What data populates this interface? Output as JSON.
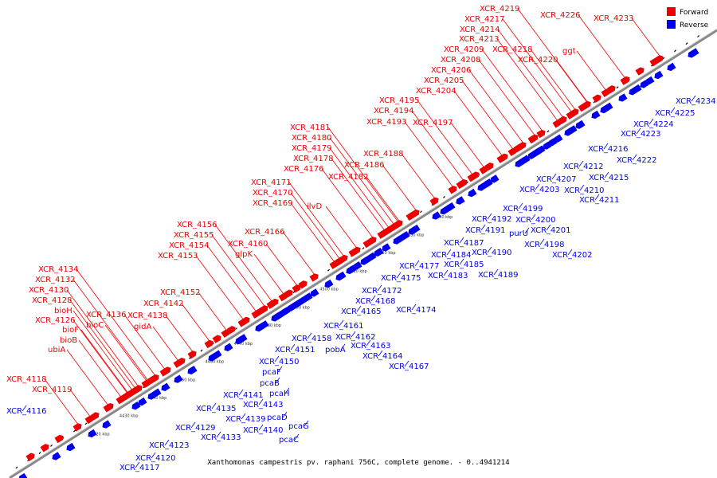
{
  "caption": "Xanthomonas campestris pv. raphani 756C, complete genome. - 0..4941214",
  "legend": [
    {
      "label": "Forward",
      "color": "#ee0000"
    },
    {
      "label": "Reverse",
      "color": "#0000ee"
    }
  ],
  "colors": {
    "forward": "#ee0000",
    "reverse": "#0000ee",
    "backbone": "#888888"
  },
  "kbp_ticks": [
    "4420 kbp",
    "4430 kbp",
    "4440 kbp",
    "4450 kbp",
    "4460 kbp",
    "4470 kbp",
    "4480 kbp",
    "4490 kbp",
    "4500 kbp",
    "4510 kbp",
    "4520 kbp",
    "4530 kbp",
    "4540 kbp"
  ],
  "forward_genes": [
    "XCR_4118",
    "XCR_4119",
    "ubiA",
    "bioB",
    "bioF",
    "XCR_4126",
    "bioH",
    "XCR_4128",
    "XCR_4130",
    "XCR_4132",
    "XCR_4134",
    "bioC",
    "XCR_4136",
    "XCR_4138",
    "gidA",
    "XCR_4142",
    "XCR_4152",
    "XCR_4153",
    "XCR_4154",
    "XCR_4155",
    "XCR_4156",
    "glpK",
    "XCR_4160",
    "XCR_4166",
    "XCR_4169",
    "XCR_4170",
    "XCR_4171",
    "ilvD",
    "XCR_4176",
    "XCR_4178",
    "XCR_4179",
    "XCR_4180",
    "XCR_4181",
    "XCR_4182",
    "XCR_4186",
    "XCR_4188",
    "XCR_4193",
    "XCR_4194",
    "XCR_4195",
    "XCR_4197",
    "XCR_4204",
    "XCR_4205",
    "XCR_4206",
    "XCR_4208",
    "XCR_4209",
    "XCR_4213",
    "XCR_4214",
    "XCR_4217",
    "XCR_4218",
    "XCR_4219",
    "XCR_4220",
    "ggt",
    "XCR_4226",
    "XCR_4233"
  ],
  "reverse_genes": [
    "XCR_4116",
    "XCR_4117",
    "XCR_4120",
    "XCR_4123",
    "XCR_4129",
    "XCR_4133",
    "XCR_4135",
    "XCR_4139",
    "pcaD",
    "XCR_4140",
    "pcaC",
    "pcaG",
    "XCR_4143",
    "pcaH",
    "XCR_4141",
    "pcaB",
    "pcaF",
    "XCR_4150",
    "XCR_4151",
    "XCR_4158",
    "pobA",
    "XCR_4161",
    "XCR_4162",
    "XCR_4163",
    "XCR_4164",
    "XCR_4167",
    "XCR_4165",
    "XCR_4168",
    "XCR_4174",
    "XCR_4172",
    "XCR_4175",
    "XCR_4177",
    "XCR_4183",
    "XCR_4184",
    "XCR_4185",
    "XCR_4189",
    "XCR_4187",
    "XCR_4190",
    "XCR_4191",
    "XCR_4192",
    "purU",
    "XCR_4199",
    "XCR_4198",
    "XCR_4200",
    "XCR_4201",
    "XCR_4202",
    "XCR_4203",
    "XCR_4207",
    "XCR_4210",
    "XCR_4211",
    "XCR_4212",
    "XCR_4215",
    "XCR_4216",
    "XCR_4222",
    "XCR_4223",
    "XCR_4224",
    "XCR_4225",
    "XCR_4234"
  ]
}
